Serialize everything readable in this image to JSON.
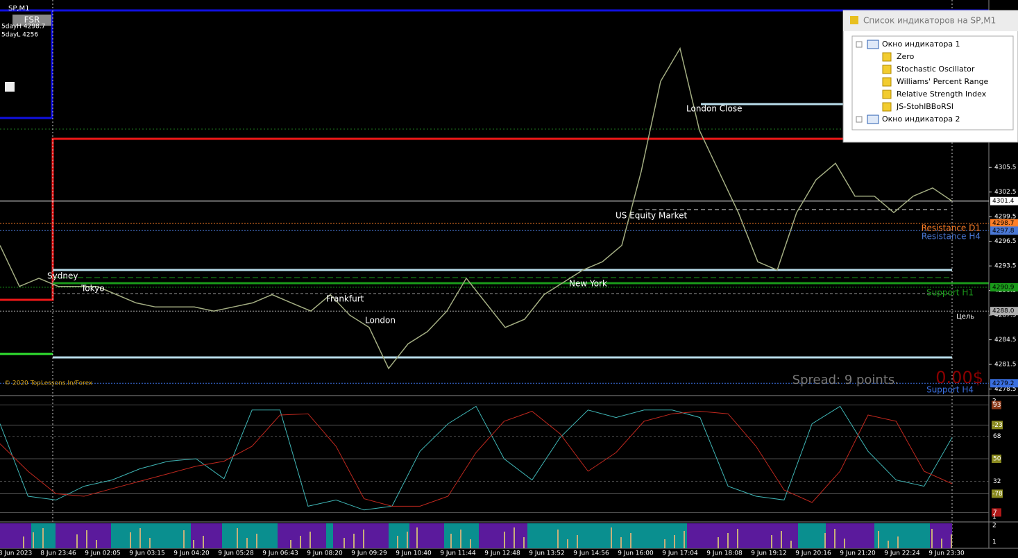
{
  "window": {
    "symbol": "SP,M1",
    "button": "FSR",
    "info": [
      "5dayH 4298.7",
      "5dayL 4256"
    ],
    "copyright": "© 2020 TopLessons.In/Forex"
  },
  "sessions": [
    "Sydney",
    "Tokyo",
    "Frankfurt",
    "London",
    "New York",
    "US Equity Market",
    "London Close"
  ],
  "level_labels": {
    "resistance_d1": "Resistance D1",
    "resistance_h4": "Resistance H4",
    "support_h1": "Support H1",
    "target": "Цель",
    "support_h4": "Support H4"
  },
  "spread": "Spread: 9 points.",
  "profit": "0.00$",
  "chart_data": {
    "type": "line",
    "color": "#a3ad82",
    "values": [
      4296,
      4291,
      4292,
      4291,
      4291,
      4291,
      4290,
      4289,
      4288.5,
      4288.5,
      4288.5,
      4288,
      4288.5,
      4289,
      4290,
      4289,
      4288,
      4290,
      4287.5,
      4286,
      4281,
      4284,
      4285.5,
      4288,
      4292,
      4289,
      4286,
      4287,
      4290,
      4291.5,
      4293,
      4294,
      4296,
      4305,
      4316,
      4320,
      4310,
      4305,
      4300,
      4294,
      4293,
      4300,
      4304,
      4306,
      4302,
      4302,
      4300,
      4302,
      4303,
      4301.4
    ],
    "ylim": [
      4277.7,
      4325.9
    ],
    "yticks": [
      4305.5,
      4302.5,
      4299.5,
      4296.5,
      4293.5,
      4290.5,
      4287.5,
      4284.5,
      4281.5,
      4278.5
    ],
    "price_tags": [
      {
        "value": 4301.4,
        "color": "#ffffff"
      },
      {
        "value": 4298.7,
        "color": "#ff7f27"
      },
      {
        "value": 4297.8,
        "color": "#4a78d6"
      },
      {
        "value": 4290.9,
        "color": "#1a9a1a"
      },
      {
        "value": 4288,
        "label": "4288.0",
        "color": "#b0b0b0"
      },
      {
        "value": 4279.2,
        "color": "#3a6fe0"
      }
    ]
  },
  "oscillator": {
    "type": "line",
    "ylim": [
      0,
      100
    ],
    "yticks": [
      93,
      68,
      50,
      32,
      7
    ],
    "wpr_ylim": [
      -100,
      0
    ],
    "wpr_ticks": [
      -23,
      -78
    ],
    "side_scale": [
      2,
      1
    ],
    "series": [
      {
        "color": "#3fb6b6",
        "values": [
          78,
          20,
          17,
          28,
          33,
          42,
          48,
          50,
          34,
          89,
          89,
          12,
          17,
          9,
          12,
          56,
          78,
          92,
          50,
          33,
          67,
          89,
          83,
          89,
          89,
          83,
          28,
          20,
          17,
          78,
          92,
          56,
          33,
          28,
          67
        ]
      },
      {
        "color": "#c0281e",
        "values": [
          62,
          40,
          22,
          20,
          26,
          32,
          38,
          44,
          48,
          60,
          85,
          86,
          60,
          18,
          12,
          12,
          20,
          55,
          80,
          88,
          70,
          40,
          55,
          80,
          86,
          88,
          86,
          60,
          25,
          15,
          40,
          85,
          80,
          40,
          30
        ]
      }
    ]
  },
  "histogram_axis": [
    2,
    1
  ],
  "time_axis": [
    "8 Jun 2023",
    "8 Jun 23:46",
    "9 Jun 02:05",
    "9 Jun 03:15",
    "9 Jun 04:20",
    "9 Jun 05:28",
    "9 Jun 06:43",
    "9 Jun 08:20",
    "9 Jun 09:29",
    "9 Jun 10:40",
    "9 Jun 11:44",
    "9 Jun 12:48",
    "9 Jun 13:52",
    "9 Jun 14:56",
    "9 Jun 16:00",
    "9 Jun 17:04",
    "9 Jun 18:08",
    "9 Jun 19:12",
    "9 Jun 20:16",
    "9 Jun 21:20",
    "9 Jun 22:24",
    "9 Jun 23:30"
  ],
  "indicator_list": {
    "title": "Список индикаторов на SP,M1",
    "windows": [
      {
        "label": "Окно индикатора 1",
        "items": [
          "Zero",
          "Stochastic Oscillator",
          "Williams' Percent Range",
          "Relative Strength Index",
          "JS-StohlBBoRSI"
        ]
      },
      {
        "label": "Окно индикатора 2",
        "items": []
      }
    ]
  }
}
